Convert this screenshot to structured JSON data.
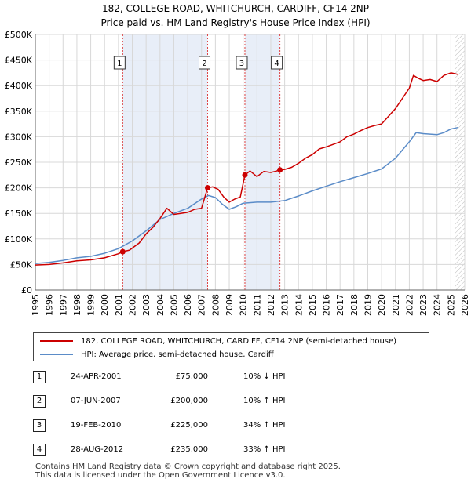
{
  "chart_data": {
    "type": "line",
    "title": "182, COLLEGE ROAD, WHITCHURCH, CARDIFF, CF14 2NP",
    "subtitle": "Price paid vs. HM Land Registry's House Price Index (HPI)",
    "xlabel": "",
    "ylabel": "",
    "xlim": [
      1995,
      2026
    ],
    "ylim": [
      0,
      500000
    ],
    "x_ticks": [
      "1995",
      "1996",
      "1997",
      "1998",
      "1999",
      "2000",
      "2001",
      "2002",
      "2003",
      "2004",
      "2005",
      "2006",
      "2007",
      "2008",
      "2009",
      "2010",
      "2011",
      "2012",
      "2013",
      "2014",
      "2015",
      "2016",
      "2017",
      "2018",
      "2019",
      "2020",
      "2021",
      "2022",
      "2023",
      "2024",
      "2025",
      "2026"
    ],
    "y_ticks": [
      {
        "value": 0,
        "label": "£0"
      },
      {
        "value": 50000,
        "label": "£50K"
      },
      {
        "value": 100000,
        "label": "£100K"
      },
      {
        "value": 150000,
        "label": "£150K"
      },
      {
        "value": 200000,
        "label": "£200K"
      },
      {
        "value": 250000,
        "label": "£250K"
      },
      {
        "value": 300000,
        "label": "£300K"
      },
      {
        "value": 350000,
        "label": "£350K"
      },
      {
        "value": 400000,
        "label": "£400K"
      },
      {
        "value": 450000,
        "label": "£450K"
      },
      {
        "value": 500000,
        "label": "£500K"
      }
    ],
    "grid": true,
    "shaded_periods": [
      [
        2001.31,
        2007.44
      ],
      [
        2010.13,
        2012.66
      ]
    ],
    "hatched_after": 2025.3,
    "series": [
      {
        "name": "182, COLLEGE ROAD, WHITCHURCH, CARDIFF, CF14 2NP (semi-detached house)",
        "color": "#cc0000",
        "x": [
          1995,
          1996,
          1997,
          1998,
          1999,
          2000,
          2000.5,
          2001.0,
          2001.31,
          2001.8,
          2002.5,
          2003.0,
          2003.5,
          2004.0,
          2004.5,
          2005.0,
          2005.5,
          2006.0,
          2006.5,
          2007.0,
          2007.44,
          2007.8,
          2008.2,
          2008.6,
          2009.0,
          2009.4,
          2009.8,
          2010.13,
          2010.5,
          2011.0,
          2011.5,
          2012.0,
          2012.3,
          2012.66,
          2013.0,
          2013.5,
          2014.0,
          2014.5,
          2015.0,
          2015.5,
          2016.0,
          2016.5,
          2017.0,
          2017.5,
          2018.0,
          2018.5,
          2019.0,
          2019.5,
          2020.0,
          2020.5,
          2021.0,
          2021.5,
          2022.0,
          2022.3,
          2022.6,
          2023.0,
          2023.5,
          2024.0,
          2024.5,
          2025.0,
          2025.5
        ],
        "values": [
          49000,
          50000,
          53000,
          57000,
          59000,
          63000,
          67000,
          71000,
          75000,
          78000,
          92000,
          110000,
          123000,
          140000,
          160000,
          148000,
          150000,
          152000,
          158000,
          160000,
          200000,
          202000,
          197000,
          182000,
          172000,
          178000,
          182000,
          225000,
          233000,
          222000,
          232000,
          230000,
          232000,
          235000,
          236000,
          240000,
          248000,
          258000,
          265000,
          276000,
          280000,
          285000,
          290000,
          300000,
          305000,
          312000,
          318000,
          322000,
          325000,
          340000,
          355000,
          375000,
          395000,
          420000,
          415000,
          410000,
          412000,
          408000,
          420000,
          425000,
          422000
        ]
      },
      {
        "name": "HPI: Average price, semi-detached house, Cardiff",
        "color": "#5b8cc8",
        "x": [
          1995,
          1996,
          1997,
          1998,
          1999,
          2000,
          2001,
          2002,
          2003,
          2004,
          2005,
          2006,
          2007,
          2007.5,
          2008,
          2008.5,
          2009,
          2009.5,
          2010,
          2011,
          2012,
          2013,
          2014,
          2015,
          2016,
          2017,
          2018,
          2019,
          2020,
          2021,
          2022,
          2022.5,
          2023,
          2023.5,
          2024,
          2024.5,
          2025,
          2025.5
        ],
        "values": [
          52000,
          54000,
          58000,
          63000,
          66000,
          72000,
          81000,
          96000,
          116000,
          138000,
          150000,
          160000,
          178000,
          185000,
          181000,
          168000,
          158000,
          163000,
          170000,
          172000,
          172000,
          175000,
          184000,
          194000,
          203000,
          212000,
          220000,
          228000,
          237000,
          258000,
          290000,
          308000,
          306000,
          305000,
          304000,
          308000,
          315000,
          318000
        ]
      }
    ],
    "sale_markers": [
      {
        "label": "1",
        "x": 2001.31,
        "value": 75000
      },
      {
        "label": "2",
        "x": 2007.44,
        "value": 200000
      },
      {
        "label": "3",
        "x": 2010.13,
        "value": 225000
      },
      {
        "label": "4",
        "x": 2012.66,
        "value": 235000
      }
    ]
  },
  "legend": {
    "property_label": "182, COLLEGE ROAD, WHITCHURCH, CARDIFF, CF14 2NP (semi-detached house)",
    "hpi_label": "HPI: Average price, semi-detached house, Cardiff"
  },
  "sales": [
    {
      "num": "1",
      "date": "24-APR-2001",
      "price": "£75,000",
      "hpi": "10% ↓ HPI"
    },
    {
      "num": "2",
      "date": "07-JUN-2007",
      "price": "£200,000",
      "hpi": "10% ↑ HPI"
    },
    {
      "num": "3",
      "date": "19-FEB-2010",
      "price": "£225,000",
      "hpi": "34% ↑ HPI"
    },
    {
      "num": "4",
      "date": "28-AUG-2012",
      "price": "£235,000",
      "hpi": "33% ↑ HPI"
    }
  ],
  "footer": {
    "line1": "Contains HM Land Registry data © Crown copyright and database right 2025.",
    "line2": "This data is licensed under the Open Government Licence v3.0."
  },
  "colors": {
    "property": "#cc0000",
    "hpi": "#5b8cc8",
    "shade": "#e8eef8",
    "grid": "#d8d8d8"
  }
}
